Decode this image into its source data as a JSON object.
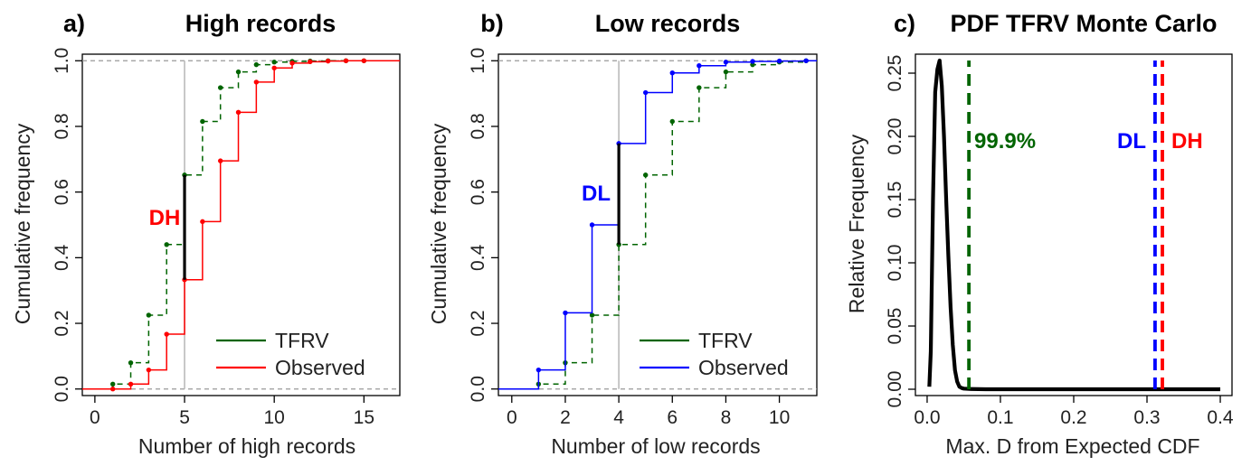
{
  "chart_data": [
    {
      "type": "line",
      "subtype": "step-cdf",
      "panel": "a)",
      "title": "High records",
      "xlabel": "Number of high records",
      "ylabel": "Cumulative frequency",
      "xlim": [
        -0.7,
        17
      ],
      "ylim": [
        -0.02,
        1.02
      ],
      "xticks": [
        0,
        5,
        10,
        15
      ],
      "yticks": [
        0.0,
        0.2,
        0.4,
        0.6,
        0.8,
        1.0
      ],
      "grid": false,
      "legend_position": "bottom-right",
      "reference_vline": 5,
      "max_diff": {
        "x": 5,
        "y_low": 0.333,
        "y_high": 0.652,
        "label": "DH"
      },
      "series": [
        {
          "name": "TFRV",
          "color": "#006400",
          "style": "dashed",
          "x": [
            1,
            2,
            3,
            4,
            5,
            6,
            7,
            8,
            9,
            10,
            11,
            12,
            13,
            14,
            15
          ],
          "values": [
            0.015,
            0.08,
            0.225,
            0.44,
            0.652,
            0.815,
            0.918,
            0.966,
            0.988,
            0.996,
            0.998,
            0.999,
            1.0,
            1.0,
            1.0
          ]
        },
        {
          "name": "Observed",
          "color": "#ff0000",
          "style": "solid",
          "x": [
            1,
            2,
            3,
            4,
            5,
            6,
            7,
            8,
            9,
            10,
            11,
            12,
            13,
            14,
            15
          ],
          "values": [
            0.0,
            0.015,
            0.058,
            0.167,
            0.333,
            0.51,
            0.695,
            0.843,
            0.935,
            0.978,
            0.993,
            0.997,
            0.999,
            1.0,
            1.0
          ]
        }
      ]
    },
    {
      "type": "line",
      "subtype": "step-cdf",
      "panel": "b)",
      "title": "Low records",
      "xlabel": "Number of low records",
      "ylabel": "Cumulative frequency",
      "xlim": [
        -0.5,
        11.4
      ],
      "ylim": [
        -0.02,
        1.02
      ],
      "xticks": [
        0,
        2,
        4,
        6,
        8,
        10
      ],
      "yticks": [
        0.0,
        0.2,
        0.4,
        0.6,
        0.8,
        1.0
      ],
      "grid": false,
      "legend_position": "bottom-right",
      "reference_vline": 4,
      "max_diff": {
        "x": 4,
        "y_low": 0.44,
        "y_high": 0.748,
        "label": "DL"
      },
      "series": [
        {
          "name": "TFRV",
          "color": "#006400",
          "style": "dashed",
          "x": [
            1,
            2,
            3,
            4,
            5,
            6,
            7,
            8,
            9,
            10,
            11
          ],
          "values": [
            0.015,
            0.08,
            0.225,
            0.44,
            0.652,
            0.815,
            0.918,
            0.966,
            0.988,
            0.996,
            1.0
          ]
        },
        {
          "name": "Observed",
          "color": "#0000ff",
          "style": "solid",
          "x": [
            1,
            2,
            3,
            4,
            5,
            6,
            7,
            8,
            9,
            10,
            11
          ],
          "values": [
            0.058,
            0.232,
            0.5,
            0.748,
            0.903,
            0.963,
            0.985,
            0.996,
            0.998,
            0.999,
            1.0
          ]
        }
      ]
    },
    {
      "type": "line",
      "panel": "c)",
      "title": "PDF TFRV Monte Carlo",
      "xlabel": "Max. D from Expected CDF",
      "ylabel": "Relative Frequency",
      "xlim": [
        -0.016,
        0.416
      ],
      "ylim": [
        -0.005,
        0.265
      ],
      "xticks": [
        0.0,
        0.1,
        0.2,
        0.3,
        0.4
      ],
      "yticks": [
        0.0,
        0.05,
        0.1,
        0.15,
        0.2,
        0.25
      ],
      "grid": false,
      "series": [
        {
          "name": "",
          "color": "#000000",
          "style": "solid",
          "x": [
            0.003,
            0.005,
            0.008,
            0.011,
            0.014,
            0.017,
            0.02,
            0.023,
            0.026,
            0.029,
            0.032,
            0.035,
            0.038,
            0.041,
            0.044,
            0.047,
            0.05,
            0.055,
            0.06,
            0.08,
            0.1,
            0.2,
            0.3,
            0.4
          ],
          "values": [
            0.002,
            0.03,
            0.15,
            0.235,
            0.253,
            0.26,
            0.24,
            0.2,
            0.15,
            0.105,
            0.065,
            0.035,
            0.015,
            0.006,
            0.002,
            0.001,
            0.0005,
            0.0003,
            0.0002,
            0.0,
            0.0,
            0.0,
            0.0,
            0.0
          ]
        }
      ],
      "vlines": [
        {
          "x": 0.057,
          "color": "#006400",
          "label": "99.9%"
        },
        {
          "x": 0.311,
          "color": "#0000ff",
          "label": "DL"
        },
        {
          "x": 0.321,
          "color": "#ff0000",
          "label": "DH"
        }
      ]
    }
  ]
}
